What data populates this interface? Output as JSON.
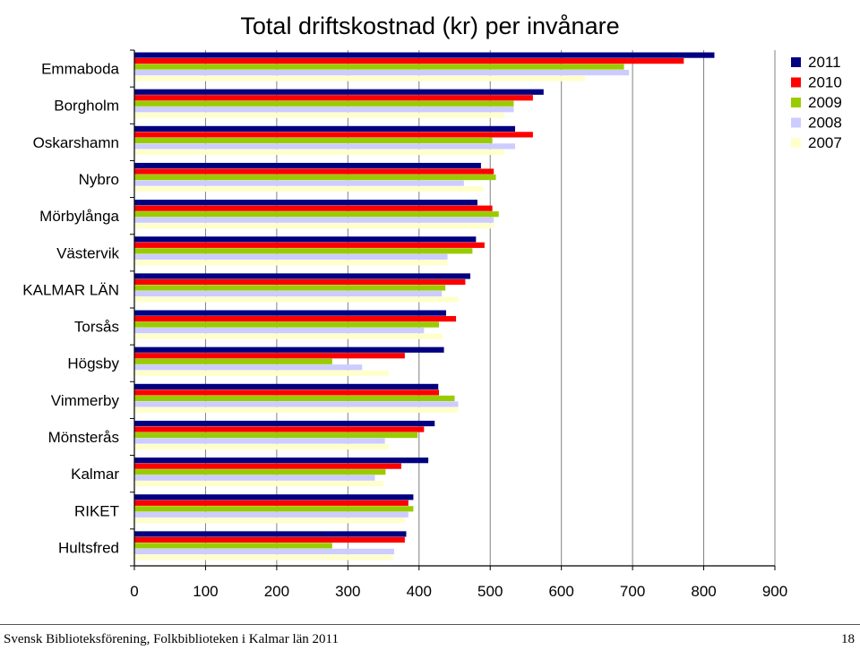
{
  "chart_data": {
    "type": "bar",
    "orientation": "horizontal",
    "title": "Total driftskostnad (kr) per invånare",
    "categories": [
      "Emmaboda",
      "Borgholm",
      "Oskarshamn",
      "Nybro",
      "Mörbylånga",
      "Västervik",
      "KALMAR LÄN",
      "Torsås",
      "Högsby",
      "Vimmerby",
      "Mönsterås",
      "Kalmar",
      "RIKET",
      "Hultsfred"
    ],
    "series": [
      {
        "name": "2011",
        "color": "#000080",
        "values": [
          815,
          575,
          535,
          487,
          482,
          480,
          472,
          438,
          435,
          427,
          422,
          413,
          392,
          382
        ]
      },
      {
        "name": "2010",
        "color": "#ff0000",
        "values": [
          772,
          560,
          560,
          505,
          503,
          492,
          465,
          452,
          380,
          428,
          407,
          375,
          385,
          380
        ]
      },
      {
        "name": "2009",
        "color": "#99cc00",
        "values": [
          688,
          533,
          503,
          508,
          512,
          475,
          437,
          428,
          278,
          450,
          398,
          353,
          392,
          278
        ]
      },
      {
        "name": "2008",
        "color": "#ccccff",
        "values": [
          695,
          533,
          535,
          463,
          505,
          440,
          432,
          407,
          320,
          455,
          352,
          338,
          385,
          365
        ]
      },
      {
        "name": "2007",
        "color": "#ffffcc",
        "values": [
          633,
          520,
          520,
          490,
          505,
          440,
          455,
          433,
          357,
          455,
          358,
          350,
          380,
          363
        ]
      }
    ],
    "xlim": [
      0,
      900
    ],
    "xticks": [
      "0",
      "100",
      "200",
      "300",
      "400",
      "500",
      "600",
      "700",
      "800",
      "900"
    ],
    "grid": true,
    "legend_position": "right"
  },
  "footer": {
    "left": "Svensk Biblioteksförening, Folkbiblioteken i Kalmar län 2011",
    "page_number": "18"
  }
}
